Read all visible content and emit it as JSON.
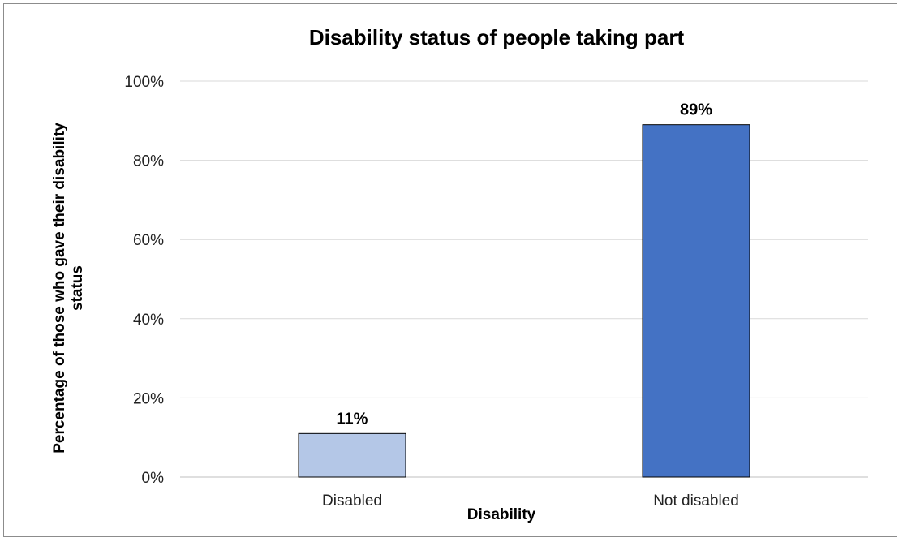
{
  "chart_data": {
    "type": "bar",
    "title": "Disability status of people taking part",
    "xlabel": "Disability",
    "ylabel_lines": [
      "Percentage of those who gave their disability",
      "status"
    ],
    "categories": [
      "Disabled",
      "Not disabled"
    ],
    "values": [
      11,
      89
    ],
    "data_labels": [
      "11%",
      "89%"
    ],
    "bar_colors": [
      "#b4c7e7",
      "#4472c4"
    ],
    "ylim": [
      0,
      100
    ],
    "yticks": [
      0,
      20,
      40,
      60,
      80,
      100
    ],
    "ytick_labels": [
      "0%",
      "20%",
      "40%",
      "60%",
      "80%",
      "100%"
    ],
    "grid": true,
    "legend": "none"
  }
}
